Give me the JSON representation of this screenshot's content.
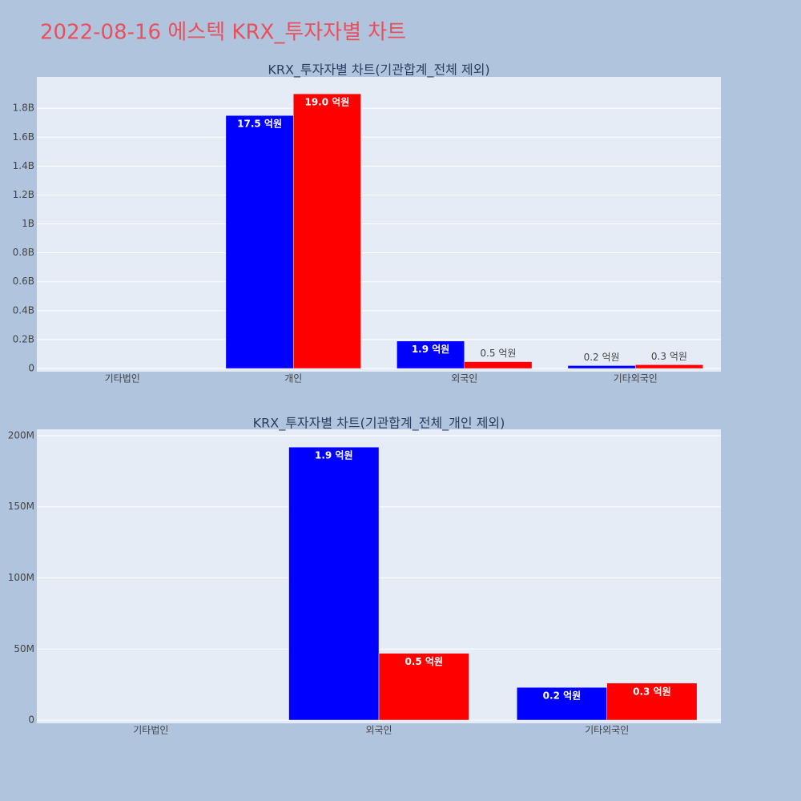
{
  "title": "2022-08-16 에스텍 KRX_투자자별 차트",
  "chart_data": [
    {
      "type": "bar",
      "title": "KRX_투자자별 차트(기관합계_전체 제외)",
      "categories": [
        "기타법인",
        "개인",
        "외국인",
        "기타외국인"
      ],
      "series": [
        {
          "color": "#0000ff",
          "values": [
            null,
            1750000000,
            190000000,
            20000000
          ],
          "value_labels": [
            null,
            "17.5 억원",
            "1.9 억원",
            "0.2 억원"
          ]
        },
        {
          "color": "#ff0000",
          "values": [
            null,
            1900000000,
            47000000,
            26000000
          ],
          "value_labels": [
            null,
            "19.0 억원",
            "0.5 억원",
            "0.3 억원"
          ]
        }
      ],
      "ylim": [
        -22000000,
        2017000000
      ],
      "yticks": [
        0,
        {
          "value": 200000000,
          "label": "0.2B"
        },
        {
          "value": 400000000,
          "label": "0.4B"
        },
        {
          "value": 600000000,
          "label": "0.6B"
        },
        {
          "value": 800000000,
          "label": "0.8B"
        },
        {
          "value": 1000000000,
          "label": "1B"
        },
        {
          "value": 1200000000,
          "label": "1.2B"
        },
        {
          "value": 1400000000,
          "label": "1.4B"
        },
        {
          "value": 1600000000,
          "label": "1.6B"
        },
        {
          "value": 1800000000,
          "label": "1.8B"
        }
      ],
      "grid": true
    },
    {
      "type": "bar",
      "title": "KRX_투자자별 차트(기관합계_전체_개인 제외)",
      "categories": [
        "기타법인",
        "외국인",
        "기타외국인"
      ],
      "series": [
        {
          "color": "#0000ff",
          "values": [
            null,
            192000000,
            23000000
          ],
          "value_labels": [
            null,
            "1.9 억원",
            "0.2 억원"
          ]
        },
        {
          "color": "#ff0000",
          "values": [
            null,
            47000000,
            26000000
          ],
          "value_labels": [
            null,
            "0.5 억원",
            "0.3 억원"
          ]
        }
      ],
      "ylim": [
        -2250000,
        204500000
      ],
      "yticks": [
        0,
        {
          "value": 50000000,
          "label": "50M"
        },
        {
          "value": 100000000,
          "label": "100M"
        },
        {
          "value": 150000000,
          "label": "150M"
        },
        {
          "value": 200000000,
          "label": "200M"
        }
      ],
      "grid": true
    }
  ]
}
